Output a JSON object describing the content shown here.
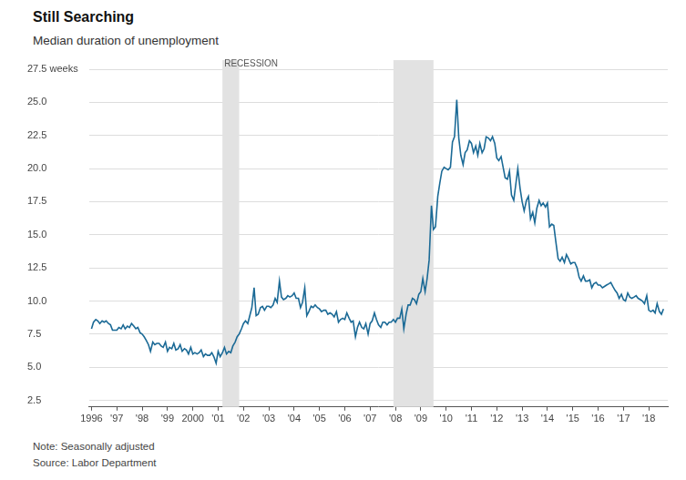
{
  "chart_data": {
    "type": "line",
    "title": "Still Searching",
    "subtitle": "Median duration of unemployment",
    "notes": [
      "Note: Seasonally adjusted",
      "Source: Labor Department"
    ],
    "color": "#1b6a96",
    "grid": true,
    "xlim": [
      1995.9,
      2018.75
    ],
    "xticks": [
      1996,
      {
        "value": 1997,
        "label": "'97"
      },
      {
        "value": 1998,
        "label": "'98"
      },
      {
        "value": 1999,
        "label": "'99"
      },
      2000,
      {
        "value": 2001,
        "label": "'01"
      },
      {
        "value": 2002,
        "label": "'02"
      },
      {
        "value": 2003,
        "label": "'03"
      },
      {
        "value": 2004,
        "label": "'04"
      },
      {
        "value": 2005,
        "label": "'05"
      },
      {
        "value": 2006,
        "label": "'06"
      },
      {
        "value": 2007,
        "label": "'07"
      },
      {
        "value": 2008,
        "label": "'08"
      },
      {
        "value": 2009,
        "label": "'09"
      },
      {
        "value": 2010,
        "label": "'10"
      },
      {
        "value": 2011,
        "label": "'11"
      },
      {
        "value": 2012,
        "label": "'12"
      },
      {
        "value": 2013,
        "label": "'13"
      },
      {
        "value": 2014,
        "label": "'14"
      },
      {
        "value": 2015,
        "label": "'15"
      },
      {
        "value": 2016,
        "label": "'16"
      },
      {
        "value": 2017,
        "label": "'17"
      },
      {
        "value": 2018,
        "label": "'18"
      }
    ],
    "ylim": [
      2,
      27.5
    ],
    "yticks": [
      2.5,
      {
        "value": 5,
        "label": "5.0"
      },
      7.5,
      {
        "value": 10,
        "label": "10.0"
      },
      12.5,
      {
        "value": 15,
        "label": "15.0"
      },
      17.5,
      {
        "value": 20,
        "label": "20.0"
      },
      22.5,
      {
        "value": 25,
        "label": "25.0"
      },
      {
        "value": 27.5,
        "label": "27.5 weeks"
      }
    ],
    "recessions": [
      {
        "start": 2001.17,
        "end": 2001.83,
        "label": "RECESSION"
      },
      {
        "start": 2007.92,
        "end": 2009.5
      }
    ],
    "x": [
      1996,
      1996.08,
      1996.17,
      1996.25,
      1996.33,
      1996.42,
      1996.5,
      1996.58,
      1996.67,
      1996.75,
      1996.83,
      1996.92,
      1997,
      1997.08,
      1997.17,
      1997.25,
      1997.33,
      1997.42,
      1997.5,
      1997.58,
      1997.67,
      1997.75,
      1997.83,
      1997.92,
      1998,
      1998.08,
      1998.17,
      1998.25,
      1998.33,
      1998.42,
      1998.5,
      1998.58,
      1998.67,
      1998.75,
      1998.83,
      1998.92,
      1999,
      1999.08,
      1999.17,
      1999.25,
      1999.33,
      1999.42,
      1999.5,
      1999.58,
      1999.67,
      1999.75,
      1999.83,
      1999.92,
      2000,
      2000.08,
      2000.17,
      2000.25,
      2000.33,
      2000.42,
      2000.5,
      2000.58,
      2000.67,
      2000.75,
      2000.83,
      2000.92,
      2001,
      2001.08,
      2001.17,
      2001.25,
      2001.33,
      2001.42,
      2001.5,
      2001.58,
      2001.67,
      2001.75,
      2001.83,
      2001.92,
      2002,
      2002.08,
      2002.17,
      2002.25,
      2002.33,
      2002.42,
      2002.5,
      2002.58,
      2002.67,
      2002.75,
      2002.83,
      2002.92,
      2003,
      2003.08,
      2003.17,
      2003.25,
      2003.33,
      2003.42,
      2003.5,
      2003.58,
      2003.67,
      2003.75,
      2003.83,
      2003.92,
      2004,
      2004.08,
      2004.17,
      2004.25,
      2004.33,
      2004.42,
      2004.5,
      2004.58,
      2004.67,
      2004.75,
      2004.83,
      2004.92,
      2005,
      2005.08,
      2005.17,
      2005.25,
      2005.33,
      2005.42,
      2005.5,
      2005.58,
      2005.67,
      2005.75,
      2005.83,
      2005.92,
      2006,
      2006.08,
      2006.17,
      2006.25,
      2006.33,
      2006.42,
      2006.5,
      2006.58,
      2006.67,
      2006.75,
      2006.83,
      2006.92,
      2007,
      2007.08,
      2007.17,
      2007.25,
      2007.33,
      2007.42,
      2007.5,
      2007.58,
      2007.67,
      2007.75,
      2007.83,
      2007.92,
      2008,
      2008.08,
      2008.17,
      2008.25,
      2008.33,
      2008.42,
      2008.5,
      2008.58,
      2008.67,
      2008.75,
      2008.83,
      2008.92,
      2009,
      2009.08,
      2009.17,
      2009.25,
      2009.33,
      2009.42,
      2009.5,
      2009.58,
      2009.67,
      2009.75,
      2009.83,
      2009.92,
      2010,
      2010.08,
      2010.17,
      2010.25,
      2010.33,
      2010.42,
      2010.5,
      2010.58,
      2010.67,
      2010.75,
      2010.83,
      2010.92,
      2011,
      2011.08,
      2011.17,
      2011.25,
      2011.33,
      2011.42,
      2011.5,
      2011.58,
      2011.67,
      2011.75,
      2011.83,
      2011.92,
      2012,
      2012.08,
      2012.17,
      2012.25,
      2012.33,
      2012.42,
      2012.5,
      2012.58,
      2012.67,
      2012.75,
      2012.83,
      2012.92,
      2013,
      2013.08,
      2013.17,
      2013.25,
      2013.33,
      2013.42,
      2013.5,
      2013.58,
      2013.67,
      2013.75,
      2013.83,
      2013.92,
      2014,
      2014.08,
      2014.17,
      2014.25,
      2014.33,
      2014.42,
      2014.5,
      2014.58,
      2014.67,
      2014.75,
      2014.83,
      2014.92,
      2015,
      2015.08,
      2015.17,
      2015.25,
      2015.33,
      2015.42,
      2015.5,
      2015.58,
      2015.67,
      2015.75,
      2015.83,
      2015.92,
      2016,
      2016.08,
      2016.17,
      2016.25,
      2016.33,
      2016.42,
      2016.5,
      2016.58,
      2016.67,
      2016.75,
      2016.83,
      2016.92,
      2017,
      2017.08,
      2017.17,
      2017.25,
      2017.33,
      2017.42,
      2017.5,
      2017.58,
      2017.67,
      2017.75,
      2017.83,
      2017.92,
      2018,
      2018.08,
      2018.17,
      2018.25,
      2018.33,
      2018.42,
      2018.5,
      2018.58
    ],
    "values": [
      7.9,
      8.4,
      8.6,
      8.5,
      8.3,
      8.5,
      8.4,
      8.5,
      8.3,
      8.2,
      7.8,
      7.8,
      7.8,
      8.0,
      7.9,
      8.2,
      7.9,
      8.1,
      8.0,
      8.3,
      8.1,
      7.9,
      8.0,
      7.6,
      7.5,
      7.3,
      7.0,
      6.7,
      6.2,
      6.9,
      6.7,
      6.8,
      6.8,
      6.6,
      6.5,
      6.9,
      6.2,
      6.5,
      6.4,
      6.8,
      6.3,
      6.4,
      6.7,
      6.2,
      6.4,
      6.3,
      6.0,
      6.5,
      6.0,
      6.1,
      6.0,
      6.1,
      6.3,
      5.8,
      6.0,
      5.9,
      5.9,
      6.1,
      5.8,
      5.3,
      6.2,
      5.8,
      6.1,
      6.5,
      6.0,
      6.2,
      6.1,
      6.6,
      6.9,
      7.3,
      7.5,
      7.9,
      8.3,
      8.5,
      8.3,
      8.9,
      9.5,
      11.0,
      8.9,
      9.0,
      9.5,
      9.6,
      9.3,
      9.6,
      9.6,
      9.5,
      9.7,
      10.2,
      9.9,
      11.5,
      10.3,
      10.1,
      10.2,
      10.4,
      10.3,
      10.4,
      10.6,
      10.2,
      10.2,
      9.5,
      9.9,
      11.0,
      8.9,
      9.2,
      9.6,
      9.5,
      9.7,
      9.5,
      9.4,
      9.2,
      9.3,
      9.3,
      9.0,
      9.1,
      9.0,
      8.8,
      9.2,
      8.4,
      8.6,
      8.7,
      8.6,
      9.1,
      8.7,
      8.4,
      8.5,
      7.3,
      8.0,
      8.4,
      8.0,
      7.9,
      8.3,
      7.5,
      8.3,
      8.5,
      9.1,
      8.6,
      8.2,
      8.0,
      8.4,
      8.4,
      8.2,
      8.4,
      8.4,
      8.6,
      8.4,
      8.7,
      8.7,
      9.4,
      7.9,
      9.0,
      9.7,
      9.7,
      10.2,
      10.1,
      9.8,
      10.5,
      10.7,
      11.7,
      10.7,
      11.7,
      13.1,
      17.2,
      15.4,
      15.6,
      17.9,
      18.9,
      19.8,
      20.1,
      20.0,
      19.9,
      20.1,
      22.0,
      22.4,
      25.2,
      22.3,
      21.0,
      20.3,
      21.2,
      21.4,
      22.1,
      21.9,
      21.2,
      21.7,
      21.0,
      21.9,
      21.2,
      21.5,
      22.4,
      22.3,
      22.1,
      22.4,
      21.9,
      20.8,
      20.6,
      20.9,
      20.1,
      19.3,
      19.2,
      19.8,
      18.0,
      17.6,
      18.8,
      20.0,
      18.5,
      17.5,
      16.8,
      17.6,
      17.9,
      16.2,
      16.7,
      15.9,
      17.0,
      17.6,
      17.2,
      17.4,
      17.1,
      17.4,
      15.6,
      15.8,
      15.7,
      14.5,
      13.2,
      13.0,
      13.3,
      12.9,
      13.5,
      13.2,
      12.8,
      12.9,
      12.9,
      12.5,
      11.8,
      11.5,
      11.9,
      11.5,
      11.5,
      11.6,
      11.0,
      11.3,
      11.4,
      11.2,
      11.2,
      11.0,
      11.1,
      11.2,
      11.3,
      11.4,
      11.1,
      10.8,
      10.6,
      10.2,
      10.5,
      10.1,
      10.0,
      10.6,
      10.3,
      10.2,
      10.3,
      10.4,
      10.2,
      10.1,
      10.0,
      9.8,
      10.4,
      9.3,
      9.2,
      9.3,
      9.1,
      9.8,
      9.2,
      9.0,
      9.4
    ]
  }
}
